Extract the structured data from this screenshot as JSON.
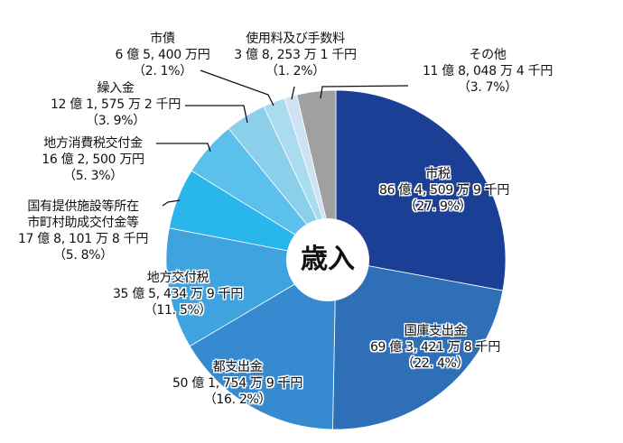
{
  "chart_data": {
    "type": "pie",
    "title": "歳入",
    "donut": true,
    "center_label": "歳入",
    "start_angle_deg": 0,
    "direction": "clockwise",
    "slices": [
      {
        "name": "市税",
        "amount": "86億4,509万9千円",
        "percent": 27.9,
        "pct_label": "（27.9%）",
        "color": "#1a3f94"
      },
      {
        "name": "国庫支出金",
        "amount": "69億3,421万8千円",
        "percent": 22.4,
        "pct_label": "（22.4%）",
        "color": "#2f6fb8"
      },
      {
        "name": "都支出金",
        "amount": "50億1,754万9千円",
        "percent": 16.2,
        "pct_label": "（16.2%）",
        "color": "#368bd0"
      },
      {
        "name": "地方交付税",
        "amount": "35億5,434万9千円",
        "percent": 11.5,
        "pct_label": "（11.5%）",
        "color": "#3ea3df"
      },
      {
        "name": "国有提供施設等所在市町村助成交付金等",
        "name_lines": [
          "国有提供施設等所在",
          "市町村助成交付金等"
        ],
        "amount": "17億8,101万8千円",
        "percent": 5.8,
        "pct_label": "（5.8%）",
        "color": "#29b6ea"
      },
      {
        "name": "地方消費税交付金",
        "amount": "16億2,500万円",
        "percent": 5.3,
        "pct_label": "（5.3%）",
        "color": "#5bc0eb"
      },
      {
        "name": "繰入金",
        "amount": "12億1,575万2千円",
        "percent": 3.9,
        "pct_label": "（3.9%）",
        "color": "#8bcfeb"
      },
      {
        "name": "市債",
        "amount": "6億5,400万円",
        "percent": 2.1,
        "pct_label": "（2.1%）",
        "color": "#a9dcef"
      },
      {
        "name": "使用料及び手数料",
        "amount": "3億8,253万1千円",
        "percent": 1.2,
        "pct_label": "（1.2%）",
        "color": "#cde3f4"
      },
      {
        "name": "その他",
        "amount": "11億8,048万4千円",
        "percent": 3.7,
        "pct_label": "（3.7%）",
        "color": "#a0a0a0"
      }
    ],
    "categories": [
      "市税",
      "国庫支出金",
      "都支出金",
      "地方交付税",
      "国有提供施設等所在市町村助成交付金等",
      "地方消費税交付金",
      "繰入金",
      "市債",
      "使用料及び手数料",
      "その他"
    ],
    "values": [
      27.9,
      22.4,
      16.2,
      11.5,
      5.8,
      5.3,
      3.9,
      2.1,
      1.2,
      3.7
    ]
  },
  "labels": {
    "shizei": {
      "name": "市税",
      "amount": "86 億 4, 509 万 9 千円",
      "pct": "（27. 9%）"
    },
    "kokko": {
      "name": "国庫支出金",
      "amount": "69 億 3, 421 万 8 千円",
      "pct": "（22. 4%）"
    },
    "toshishutsu": {
      "name": "都支出金",
      "amount": "50 億 1, 754 万 9 千円",
      "pct": "（16. 2%）"
    },
    "chihokofu": {
      "name": "地方交付税",
      "amount": "35 億 5, 434 万 9 千円",
      "pct": "（11. 5%）"
    },
    "kokuyu": {
      "name1": "国有提供施設等所在",
      "name2": "市町村助成交付金等",
      "amount": "17 億 8, 101 万 8 千円",
      "pct": "（5. 8%）"
    },
    "shohizei": {
      "name": "地方消費税交付金",
      "amount": "16 億 2, 500 万円",
      "pct": "（5. 3%）"
    },
    "kurikomi": {
      "name": "繰入金",
      "amount": "12 億 1, 575 万 2 千円",
      "pct": "（3. 9%）"
    },
    "shisai": {
      "name": "市債",
      "amount": "6 億 5, 400 万円",
      "pct": "（2. 1%）"
    },
    "shiyoryo": {
      "name": "使用料及び手数料",
      "amount": "3 億 8, 253 万 1 千円",
      "pct": "（1. 2%）"
    },
    "sonota": {
      "name": "その他",
      "amount": "11 億 8, 048 万 4 千円",
      "pct": "（3. 7%）"
    }
  },
  "center": {
    "label": "歳入"
  }
}
